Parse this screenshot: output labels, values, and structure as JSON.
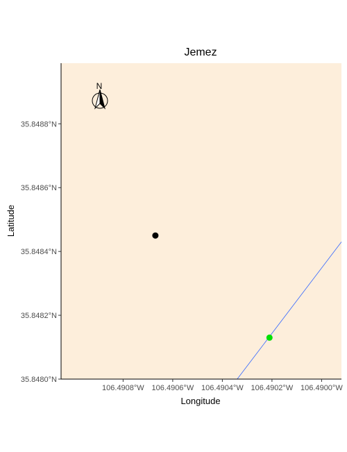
{
  "chart_data": {
    "type": "map",
    "title": "Jemez",
    "xlabel": "Longitude",
    "ylabel": "Latitude",
    "xlim": [
      -106.49105,
      -106.48992
    ],
    "ylim": [
      35.848,
      35.84899
    ],
    "x_ticks": [
      {
        "value": -106.4908,
        "label": "106.4908°W"
      },
      {
        "value": -106.4906,
        "label": "106.4906°W"
      },
      {
        "value": -106.4904,
        "label": "106.4904°W"
      },
      {
        "value": -106.4902,
        "label": "106.4902°W"
      },
      {
        "value": -106.49,
        "label": "106.4900°W"
      }
    ],
    "y_ticks": [
      {
        "value": 35.848,
        "label": "35.8480°N"
      },
      {
        "value": 35.8482,
        "label": "35.8482°N"
      },
      {
        "value": 35.8484,
        "label": "35.8484°N"
      },
      {
        "value": 35.8486,
        "label": "35.8486°N"
      },
      {
        "value": 35.8488,
        "label": "35.8488°N"
      }
    ],
    "points": [
      {
        "lon": -106.49067,
        "lat": 35.84845,
        "color": "#000000"
      },
      {
        "lon": -106.49021,
        "lat": 35.84813,
        "color": "#00e000"
      }
    ],
    "lines": [
      {
        "color": "#3366ff",
        "coords": [
          [
            -106.49034,
            35.848
          ],
          [
            -106.48992,
            35.84843
          ]
        ]
      }
    ],
    "north_arrow": {
      "label": "N",
      "placement": "top-left"
    },
    "grid": false,
    "background_color": "#fdeedb",
    "axis_color": "#000000"
  }
}
